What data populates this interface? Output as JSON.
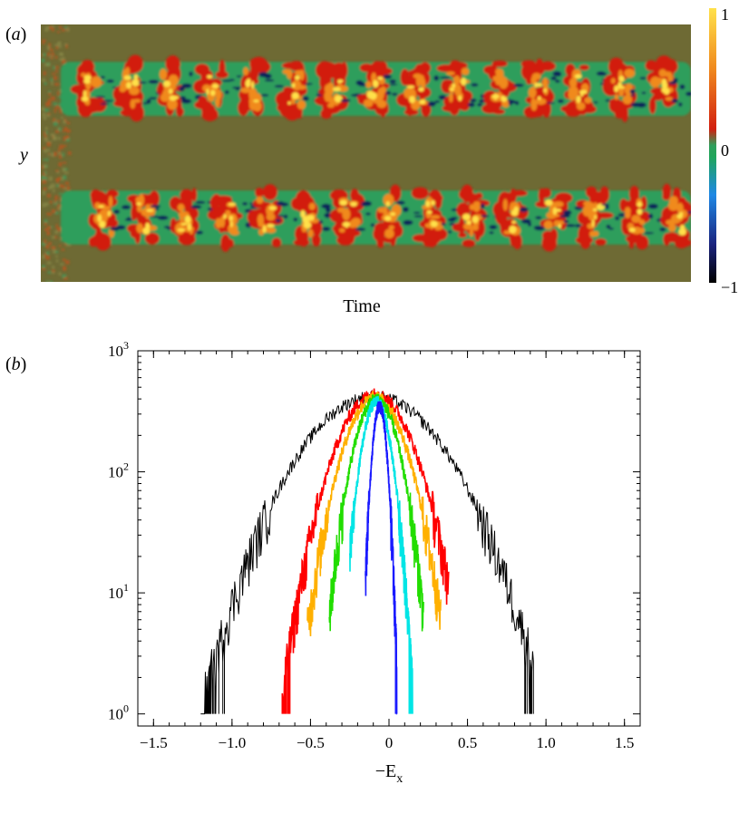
{
  "chart_data": [
    {
      "panel": "(a)",
      "type": "heatmap",
      "xlabel": "Time",
      "ylabel": "y",
      "colorbar": {
        "ticks": [
          "1",
          "0",
          "−1"
        ],
        "range": [
          -1,
          1
        ],
        "colors": [
          "#000000",
          "#1a237e",
          "#1e88e5",
          "#1fa55a",
          "#2e9e5b",
          "#d21f0f",
          "#f08a1e",
          "#ffe14a"
        ]
      },
      "background_color": "#6e6a34",
      "bands": [
        {
          "name": "upper band",
          "y_fraction_center": 0.25,
          "y_fraction_width": 0.21
        },
        {
          "name": "lower band",
          "y_fraction_center": 0.75,
          "y_fraction_width": 0.21
        }
      ],
      "structure_count": 15
    },
    {
      "panel": "(b)",
      "type": "line",
      "xlabel": "−E",
      "xlabel_sub": "x",
      "ylabel": "",
      "yscale": "log",
      "xlim": [
        -1.6,
        1.6
      ],
      "ylim_exp": [
        -0.1,
        3.0
      ],
      "xticks": [
        -1.5,
        -1.0,
        -0.5,
        0,
        0.5,
        1.0,
        1.5
      ],
      "xtick_labels": [
        "−1.5",
        "−1.0",
        "−0.5",
        "0",
        "0.5",
        "1.0",
        "1.5"
      ],
      "yticks_exp": [
        0,
        1,
        2,
        3
      ],
      "ytick_base": "10",
      "grid": false,
      "series": [
        {
          "color": "#000000",
          "mu": -0.1,
          "sigma": 0.32,
          "peak": 420,
          "xmin": -1.2,
          "xmax": 0.92
        },
        {
          "color": "#ff0000",
          "mu": -0.09,
          "sigma": 0.175,
          "peak": 440,
          "xmin": -0.68,
          "xmax": 0.38
        },
        {
          "color": "#ffb000",
          "mu": -0.09,
          "sigma": 0.145,
          "peak": 410,
          "xmin": -0.52,
          "xmax": 0.33
        },
        {
          "color": "#22dd00",
          "mu": -0.08,
          "sigma": 0.105,
          "peak": 400,
          "xmin": -0.38,
          "xmax": 0.22
        },
        {
          "color": "#00e5e5",
          "mu": -0.08,
          "sigma": 0.07,
          "peak": 380,
          "xmin": -0.25,
          "xmax": 0.15
        },
        {
          "color": "#1a1aff",
          "mu": -0.06,
          "sigma": 0.035,
          "peak": 350,
          "xmin": -0.15,
          "xmax": 0.05
        }
      ]
    }
  ]
}
